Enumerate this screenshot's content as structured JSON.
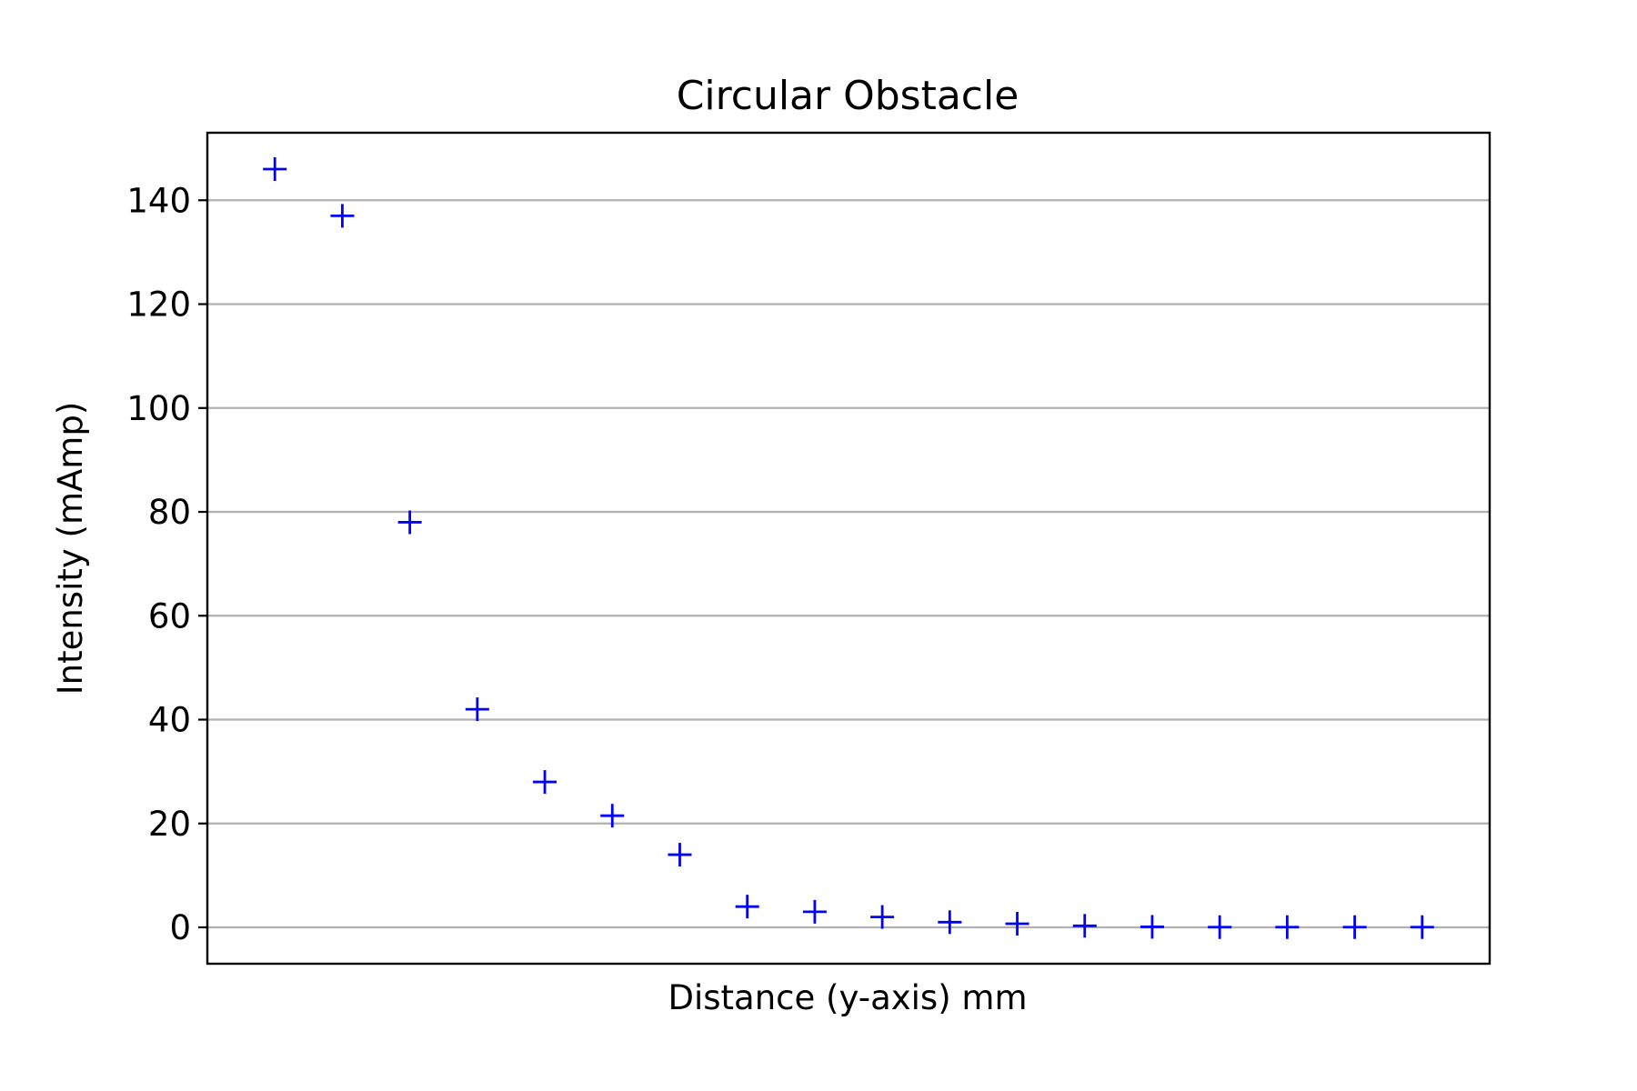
{
  "chart_data": {
    "type": "scatter",
    "title": "Circular Obstacle",
    "xlabel": "Distance (y-axis) mm",
    "ylabel": "Intensity (mAmp)",
    "marker": "plus",
    "marker_color": "#0000ff",
    "grid": "horizontal",
    "x_ticks_shown": false,
    "xlim": [
      0,
      19
    ],
    "ylim": [
      -7,
      153
    ],
    "yticks": [
      0,
      20,
      40,
      60,
      80,
      100,
      120,
      140
    ],
    "series": [
      {
        "x": [
          1,
          2,
          3,
          4,
          5,
          6,
          7,
          8,
          9,
          10,
          11,
          12,
          13,
          14,
          15,
          16,
          17,
          18
        ],
        "values": [
          146,
          137,
          78,
          42,
          28,
          21.5,
          14,
          4,
          3,
          2,
          1,
          0.7,
          0.3,
          0.1,
          0.05,
          0.05,
          0.05,
          0.05
        ]
      }
    ]
  }
}
